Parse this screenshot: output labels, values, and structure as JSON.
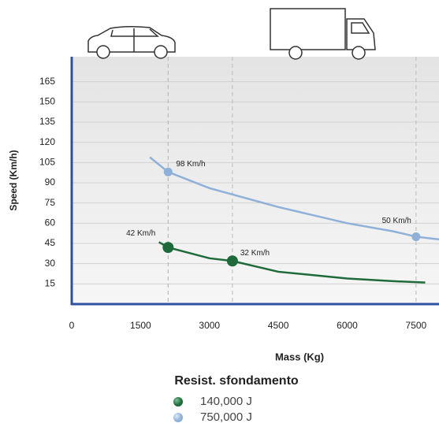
{
  "chart_data": {
    "type": "line",
    "x_label": "Mass (Kg)",
    "y_label": "Speed (Km/h)",
    "xlim": [
      0,
      8000
    ],
    "ylim": [
      0,
      180
    ],
    "xticks": [
      0,
      1500,
      3000,
      4500,
      6000,
      7500
    ],
    "yticks": [
      15,
      30,
      45,
      60,
      75,
      90,
      105,
      120,
      135,
      150,
      165
    ],
    "grid": true,
    "legend_title": "Resist. sfondamento",
    "series": [
      {
        "name": "140,000 J",
        "color": "#1e6a3a",
        "x": [
          1900,
          2100,
          3000,
          3500,
          4500,
          6000,
          7000,
          7700
        ],
        "values": [
          46,
          42,
          34,
          32,
          24,
          19,
          17,
          16
        ],
        "points": {
          "x": [
            2100,
            3500
          ],
          "values": [
            42,
            32
          ],
          "value_labels": [
            "42 Km/h",
            "32 Km/h"
          ]
        }
      },
      {
        "name": "750,000 J",
        "color": "#8fb0d8",
        "x": [
          1700,
          2100,
          3000,
          4500,
          6000,
          7000,
          7500,
          8000
        ],
        "values": [
          109,
          98,
          86,
          72,
          60,
          54,
          50,
          48
        ],
        "points": {
          "x": [
            2100,
            7500
          ],
          "values": [
            98,
            50
          ],
          "value_labels": [
            "98 Km/h",
            "50 Km/h"
          ]
        }
      }
    ]
  }
}
